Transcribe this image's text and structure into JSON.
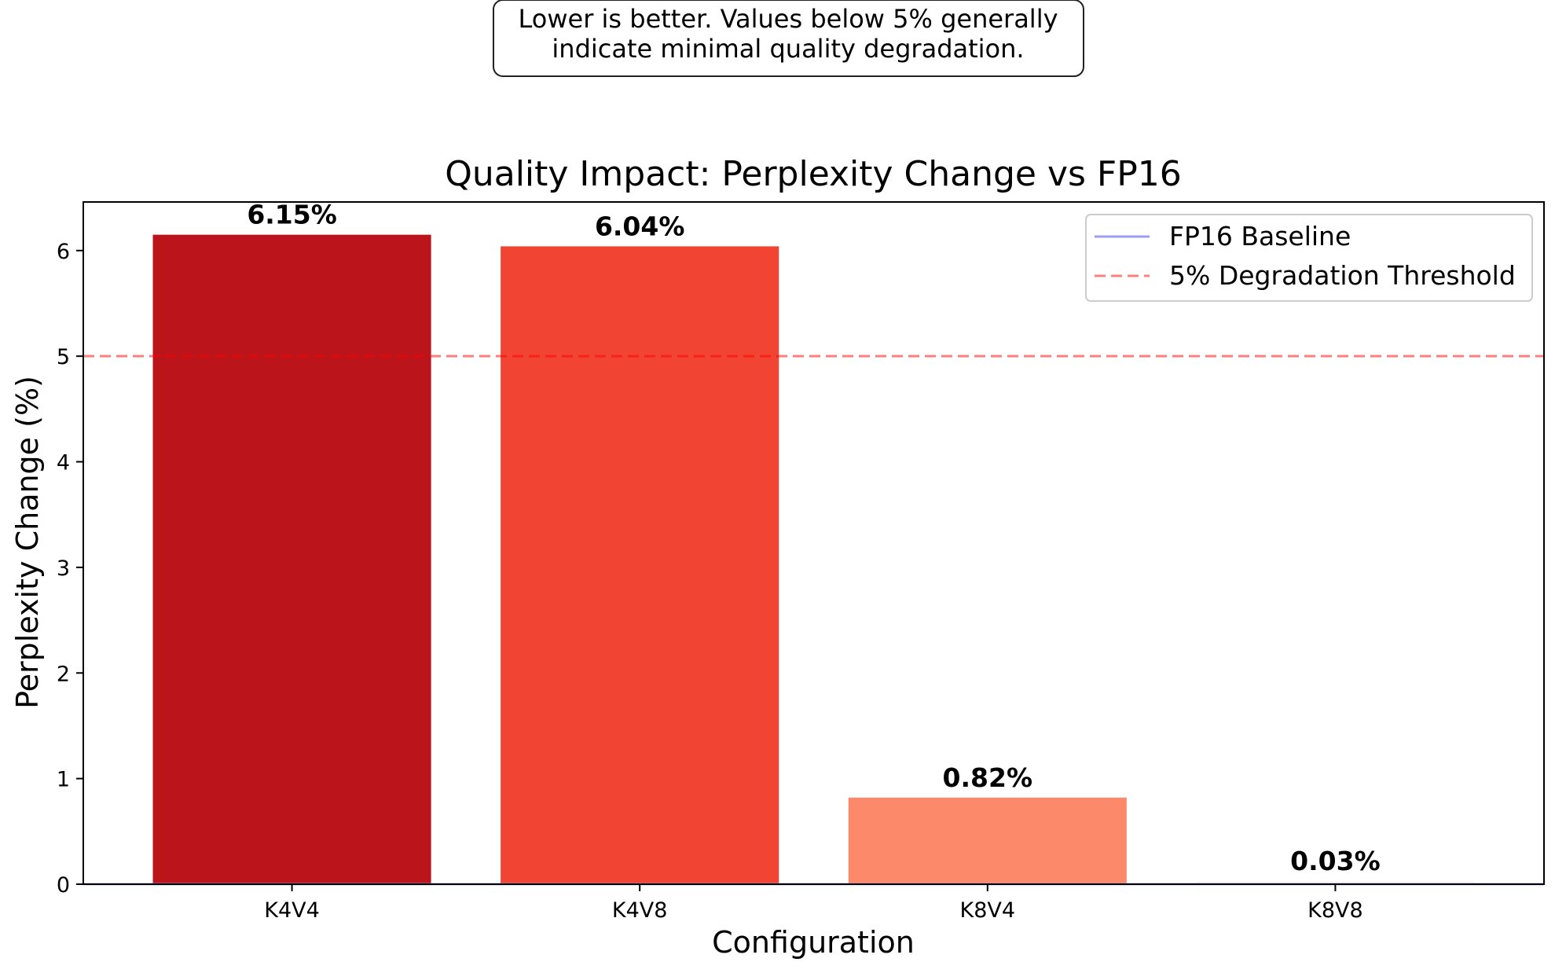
{
  "chart_data": {
    "type": "bar",
    "title": "Quality Impact: Perplexity Change vs FP16",
    "annotation": [
      "Lower is better. Values below 5% generally",
      "indicate minimal quality degradation."
    ],
    "xlabel": "Configuration",
    "ylabel": "Perplexity Change (%)",
    "categories": [
      "K4V4",
      "K4V8",
      "K8V4",
      "K8V8"
    ],
    "values": [
      6.15,
      6.04,
      0.82,
      0.03
    ],
    "value_labels": [
      "6.15%",
      "6.04%",
      "0.82%",
      "0.03%"
    ],
    "bar_colors": [
      "#bb141a",
      "#f14432",
      "#fc8a6a",
      "#fff5f0"
    ],
    "ylim": [
      0,
      6.46
    ],
    "yticks": [
      0,
      1,
      2,
      3,
      4,
      5,
      6
    ],
    "ytick_labels": [
      "0",
      "1",
      "2",
      "3",
      "4",
      "5",
      "6"
    ],
    "grid": false,
    "reference_lines": [
      {
        "name": "FP16 Baseline",
        "y": 0,
        "color": "#9e9ef5",
        "style": "solid"
      },
      {
        "name": "5% Degradation Threshold",
        "y": 5,
        "color": "#ff0000",
        "style": "dashed"
      }
    ],
    "legend": {
      "position": "top-right",
      "entries": [
        "FP16 Baseline",
        "5% Degradation Threshold"
      ]
    }
  }
}
